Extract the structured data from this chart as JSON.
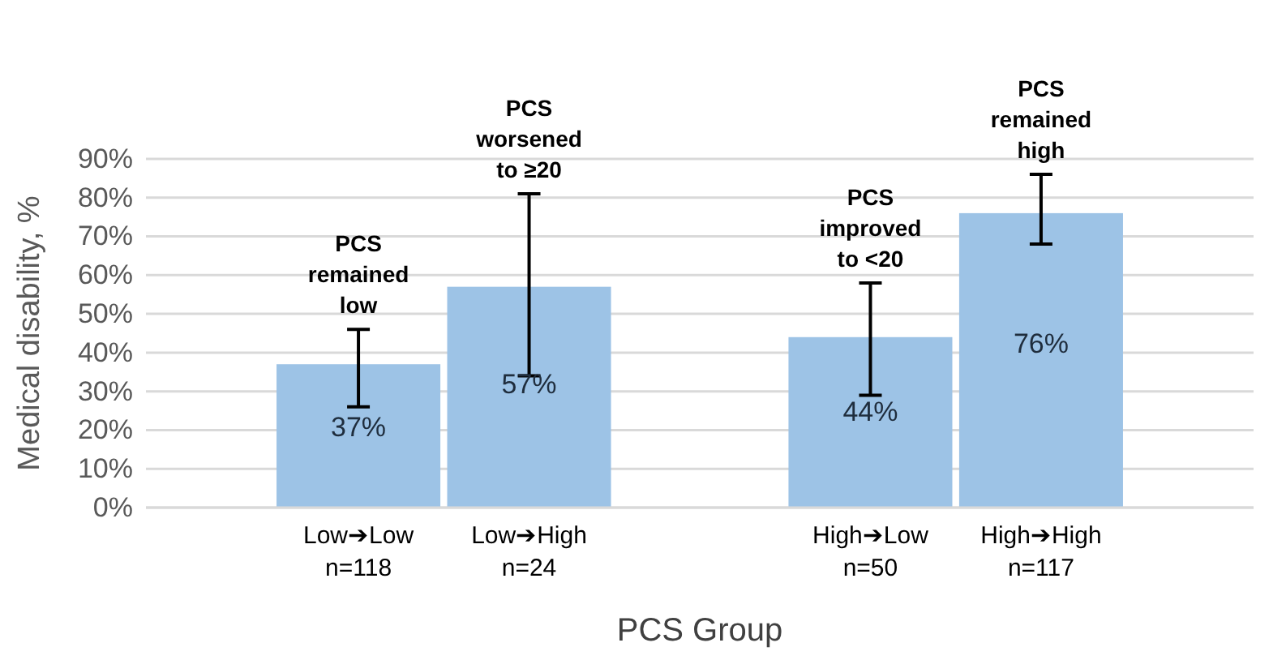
{
  "chart_data": {
    "type": "bar",
    "xlabel": "PCS Group",
    "ylabel": "Medical disability, %",
    "categories": [
      "Low➔Low\nn=118",
      "Low➔High\nn=24",
      null,
      "High➔Low\nn=50",
      "High➔High\nn=117"
    ],
    "values": [
      37,
      57,
      null,
      44,
      76
    ],
    "errors": [
      [
        26,
        46
      ],
      [
        34,
        81
      ],
      null,
      [
        29,
        58
      ],
      [
        68,
        86
      ]
    ],
    "color": "#9dc3e6",
    "data_labels": true,
    "value_labels": [
      "37%",
      "57%",
      null,
      "44%",
      "76%"
    ],
    "ylim": [
      0,
      90
    ],
    "yticks": [
      {
        "value": 0,
        "label": "0%"
      },
      {
        "value": 10,
        "label": "10%"
      },
      {
        "value": 20,
        "label": "20%"
      },
      {
        "value": 30,
        "label": "30%"
      },
      {
        "value": 40,
        "label": "40%"
      },
      {
        "value": 50,
        "label": "50%"
      },
      {
        "value": 60,
        "label": "60%"
      },
      {
        "value": 70,
        "label": "70%"
      },
      {
        "value": 80,
        "label": "80%"
      },
      {
        "value": 90,
        "label": "90%"
      }
    ],
    "grid": "y",
    "annotations": [
      {
        "text": "PCS\nremained\nlow",
        "x": "Low➔Low\nn=118",
        "y": 46
      },
      {
        "text": "PCS\nworsened\nto ≥20",
        "x": "Low➔High\nn=24",
        "y": 81
      },
      {
        "text": "PCS\nimproved\nto <20",
        "x": "High➔Low\nn=50",
        "y": 58
      },
      {
        "text": "PCS\nremained\nhigh",
        "x": "High➔High\nn=117",
        "y": 86
      }
    ]
  }
}
